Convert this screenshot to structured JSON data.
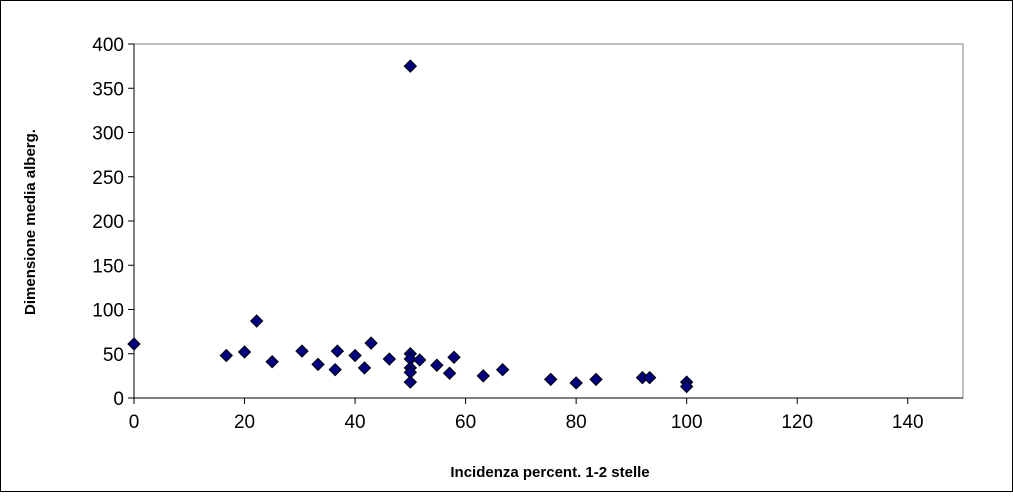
{
  "chart_data": {
    "type": "scatter",
    "title": "",
    "xlabel": "Incidenza percent. 1-2 stelle",
    "ylabel": "Dimensione media alberg.",
    "xlim": [
      0,
      150
    ],
    "ylim": [
      0,
      400
    ],
    "x_ticks": [
      0,
      20,
      40,
      60,
      80,
      100,
      120,
      140
    ],
    "y_ticks": [
      0,
      50,
      100,
      150,
      200,
      250,
      300,
      350,
      400
    ],
    "x_tick_labels": [
      "0",
      "20",
      "40",
      "60",
      "80",
      "100",
      "120",
      "140"
    ],
    "y_tick_labels": [
      "0",
      "50",
      "100",
      "150",
      "200",
      "250",
      "300",
      "350",
      "400"
    ],
    "grid": false,
    "legend": "none",
    "marker": "diamond",
    "colors": {
      "marker_fill": "#000080",
      "marker_stroke": "#000000",
      "axis": "#808080",
      "frame": "#000000"
    },
    "points": [
      {
        "x": 0,
        "y": 61
      },
      {
        "x": 16.7,
        "y": 48
      },
      {
        "x": 20,
        "y": 52
      },
      {
        "x": 22.2,
        "y": 87
      },
      {
        "x": 25,
        "y": 41
      },
      {
        "x": 30.4,
        "y": 53
      },
      {
        "x": 33.3,
        "y": 38
      },
      {
        "x": 36.4,
        "y": 32
      },
      {
        "x": 36.8,
        "y": 53
      },
      {
        "x": 40,
        "y": 48
      },
      {
        "x": 41.7,
        "y": 34
      },
      {
        "x": 42.9,
        "y": 62
      },
      {
        "x": 46.2,
        "y": 44
      },
      {
        "x": 50,
        "y": 375
      },
      {
        "x": 50,
        "y": 50
      },
      {
        "x": 50,
        "y": 44
      },
      {
        "x": 50,
        "y": 34
      },
      {
        "x": 50,
        "y": 29
      },
      {
        "x": 50,
        "y": 18
      },
      {
        "x": 51.7,
        "y": 43
      },
      {
        "x": 54.8,
        "y": 37
      },
      {
        "x": 57.1,
        "y": 28
      },
      {
        "x": 57.9,
        "y": 46
      },
      {
        "x": 63.2,
        "y": 25
      },
      {
        "x": 66.7,
        "y": 32
      },
      {
        "x": 75.4,
        "y": 21
      },
      {
        "x": 80,
        "y": 17
      },
      {
        "x": 83.6,
        "y": 21
      },
      {
        "x": 92,
        "y": 23
      },
      {
        "x": 93.3,
        "y": 23
      },
      {
        "x": 100,
        "y": 18
      },
      {
        "x": 100,
        "y": 13
      }
    ]
  }
}
